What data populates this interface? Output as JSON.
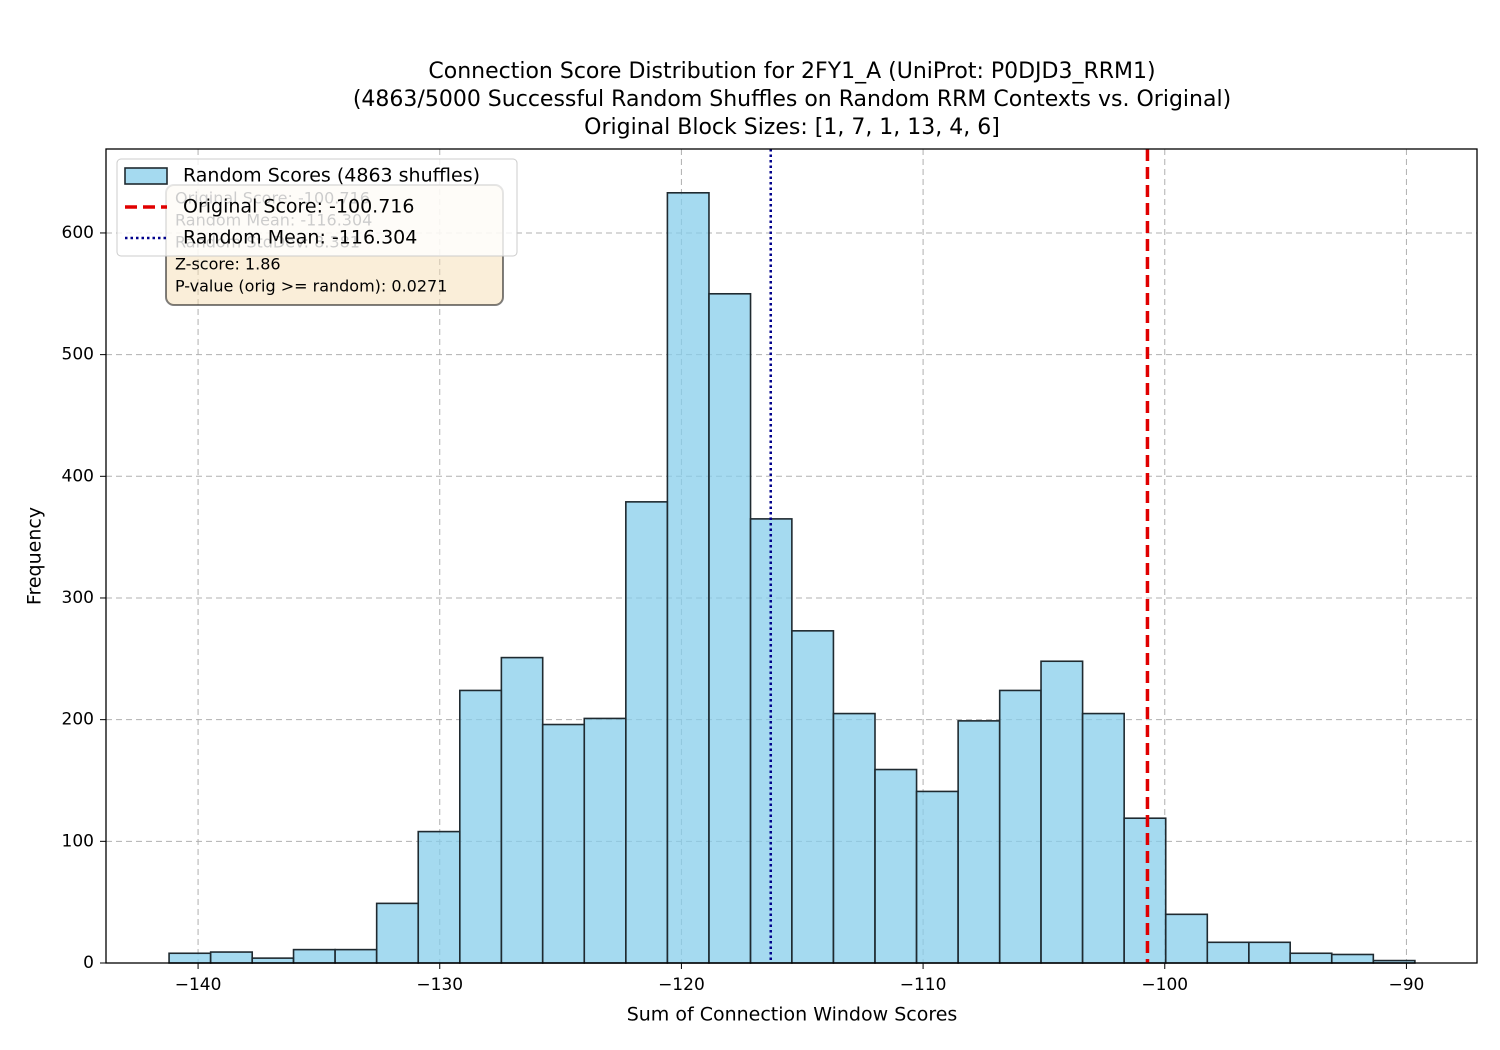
{
  "chart_data": {
    "type": "histogram",
    "title": "Connection Score Distribution for 2FY1_A (UniProt: P0DJD3_RRM1)",
    "subtitle": "(4863/5000 Successful Random Shuffles on Random RRM Contexts vs. Original)",
    "subtitle2": "Original Block Sizes: [1, 7, 1, 13, 4, 6]",
    "x_label": "Sum of Connection Window Scores",
    "y_label": "Frequency",
    "series": [
      {
        "name": "Random Scores (4863 shuffles)",
        "color": "#87ceeb",
        "edgecolor": "#1f2a30",
        "bins": [
          -141.2,
          -139.48,
          -137.76,
          -136.05,
          -134.33,
          -132.61,
          -130.89,
          -129.17,
          -127.45,
          -125.74,
          -124.02,
          -122.3,
          -120.58,
          -118.86,
          -117.14,
          -115.43,
          -113.71,
          -111.99,
          -110.27,
          -108.55,
          -106.83,
          -105.12,
          -103.4,
          -101.68,
          -99.96,
          -98.24,
          -96.52,
          -94.81,
          -93.09,
          -91.37,
          -89.65
        ],
        "values": [
          8,
          9,
          4,
          11,
          11,
          49,
          108,
          224,
          251,
          196,
          201,
          379,
          633,
          550,
          365,
          273,
          205,
          159,
          141,
          199,
          224,
          248,
          205,
          119,
          40,
          17,
          17,
          8,
          7,
          2
        ]
      }
    ],
    "reference_lines": [
      {
        "name": "Original Score: -100.716",
        "value": -100.716,
        "color": "#e00000",
        "style": "dashed"
      },
      {
        "name": "Random Mean: -116.304",
        "value": -116.304,
        "color": "#00008b",
        "style": "dotted"
      }
    ],
    "annotation": [
      "Original Score: -100.716",
      "Random Mean: -116.304",
      "Random StdDev: 8.381",
      "Z-score: 1.86",
      "P-value (orig >= random): 0.0271"
    ],
    "xlim": [
      -143.81,
      -87.08
    ],
    "ylim": [
      0,
      669
    ],
    "xticks": [
      {
        "value": -140,
        "label": "−140"
      },
      {
        "value": -130,
        "label": "−130"
      },
      {
        "value": -120,
        "label": "−120"
      },
      {
        "value": -110,
        "label": "−110"
      },
      {
        "value": -100,
        "label": "−100"
      },
      {
        "value": -90,
        "label": "−90"
      }
    ],
    "yticks": [
      0,
      100,
      200,
      300,
      400,
      500,
      600
    ],
    "grid": true,
    "legend": "upper left"
  }
}
